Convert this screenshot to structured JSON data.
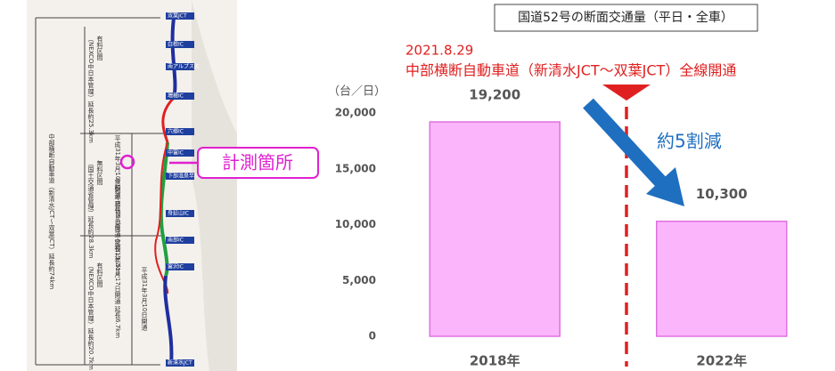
{
  "chart_data": {
    "type": "bar",
    "title": "国道52号の断面交通量（平日・全車）",
    "annotations": [
      "2021.8.29",
      "中部横断自動車道（新清水JCT～双葉JCT）全線開通",
      "約5割減"
    ],
    "y_label": "（台／日）",
    "categories": [
      "2018年",
      "2022年"
    ],
    "values": [
      19200,
      10300
    ],
    "value_labels": [
      "19,200",
      "10,300"
    ],
    "color": "#fbb6fb",
    "edge_color": "#e070e0",
    "ylim": [
      0,
      20000
    ],
    "yticks": [
      0,
      {
        "value": 5000,
        "label": "5,000"
      },
      {
        "value": 10000,
        "label": "10,000"
      },
      {
        "value": 15000,
        "label": "15,000"
      },
      {
        "value": 20000,
        "label": "20,000"
      }
    ]
  },
  "map": {
    "callout": "計測箇所",
    "notes": [
      "中部横断自動車道（新清水JCT～双葉JCT）延長約74km",
      "有料区間",
      "（NEXCO中日本管理）延長約25.3km",
      "無料区間",
      "（国土交通省管理）延長約28.3km",
      "有料区間",
      "（NEXCO中日本管理）延長約20.7km",
      "平成31年3月10日開通",
      "令和元年11月17日開通 延長6.7km",
      "令和3年8月29日開通 延長13.2km",
      "平成31年3月10日開通 延長8.4km"
    ],
    "interchanges": [
      "双葉JCT",
      "白根IC",
      "南アルプスIC",
      "増穂IC",
      "六郷IC",
      "中富IC",
      "下部温泉早川IC",
      "身延山IC",
      "南部IC",
      "富沢IC",
      "新清水JCT"
    ]
  }
}
